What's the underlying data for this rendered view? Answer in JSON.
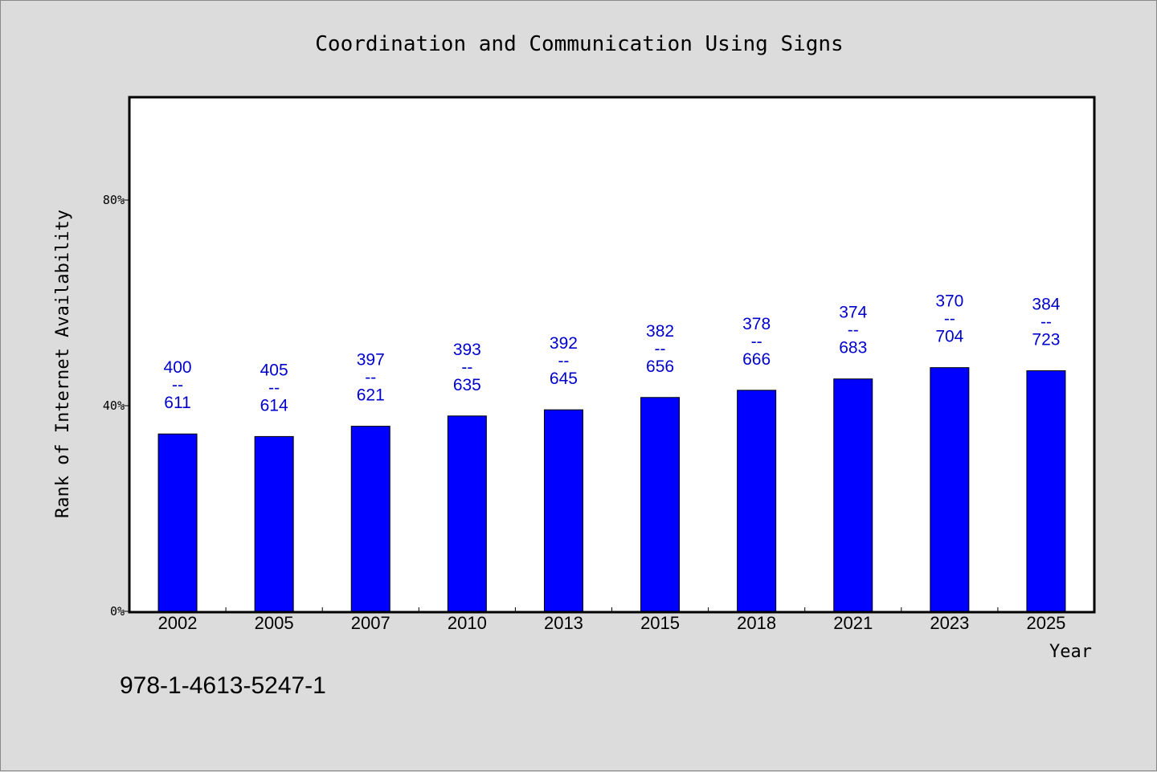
{
  "chart_data": {
    "type": "bar",
    "title": "Coordination and Communication Using Signs",
    "xlabel": "Year",
    "ylabel": "Rank of Internet Availability",
    "categories": [
      "2002",
      "2005",
      "2007",
      "2010",
      "2013",
      "2015",
      "2018",
      "2021",
      "2023",
      "2025"
    ],
    "values": [
      34.5,
      34.0,
      36.0,
      38.0,
      39.2,
      41.6,
      43.0,
      45.2,
      47.4,
      46.8
    ],
    "label_top": [
      "400",
      "405",
      "397",
      "393",
      "392",
      "382",
      "378",
      "374",
      "370",
      "384"
    ],
    "label_sep": "--",
    "label_bottom": [
      "611",
      "614",
      "621",
      "635",
      "645",
      "656",
      "666",
      "683",
      "704",
      "723"
    ],
    "ylim": [
      0,
      100
    ],
    "yticks": [
      0,
      40,
      80
    ],
    "ytick_labels": [
      "0%",
      "40%",
      "80%"
    ],
    "grid": false,
    "bar_color": "#0000ff",
    "label_color": "#0000cc",
    "plot_background": "#ffffff",
    "page_background": "#dcdcdc"
  },
  "footnote": "978-1-4613-5247-1"
}
